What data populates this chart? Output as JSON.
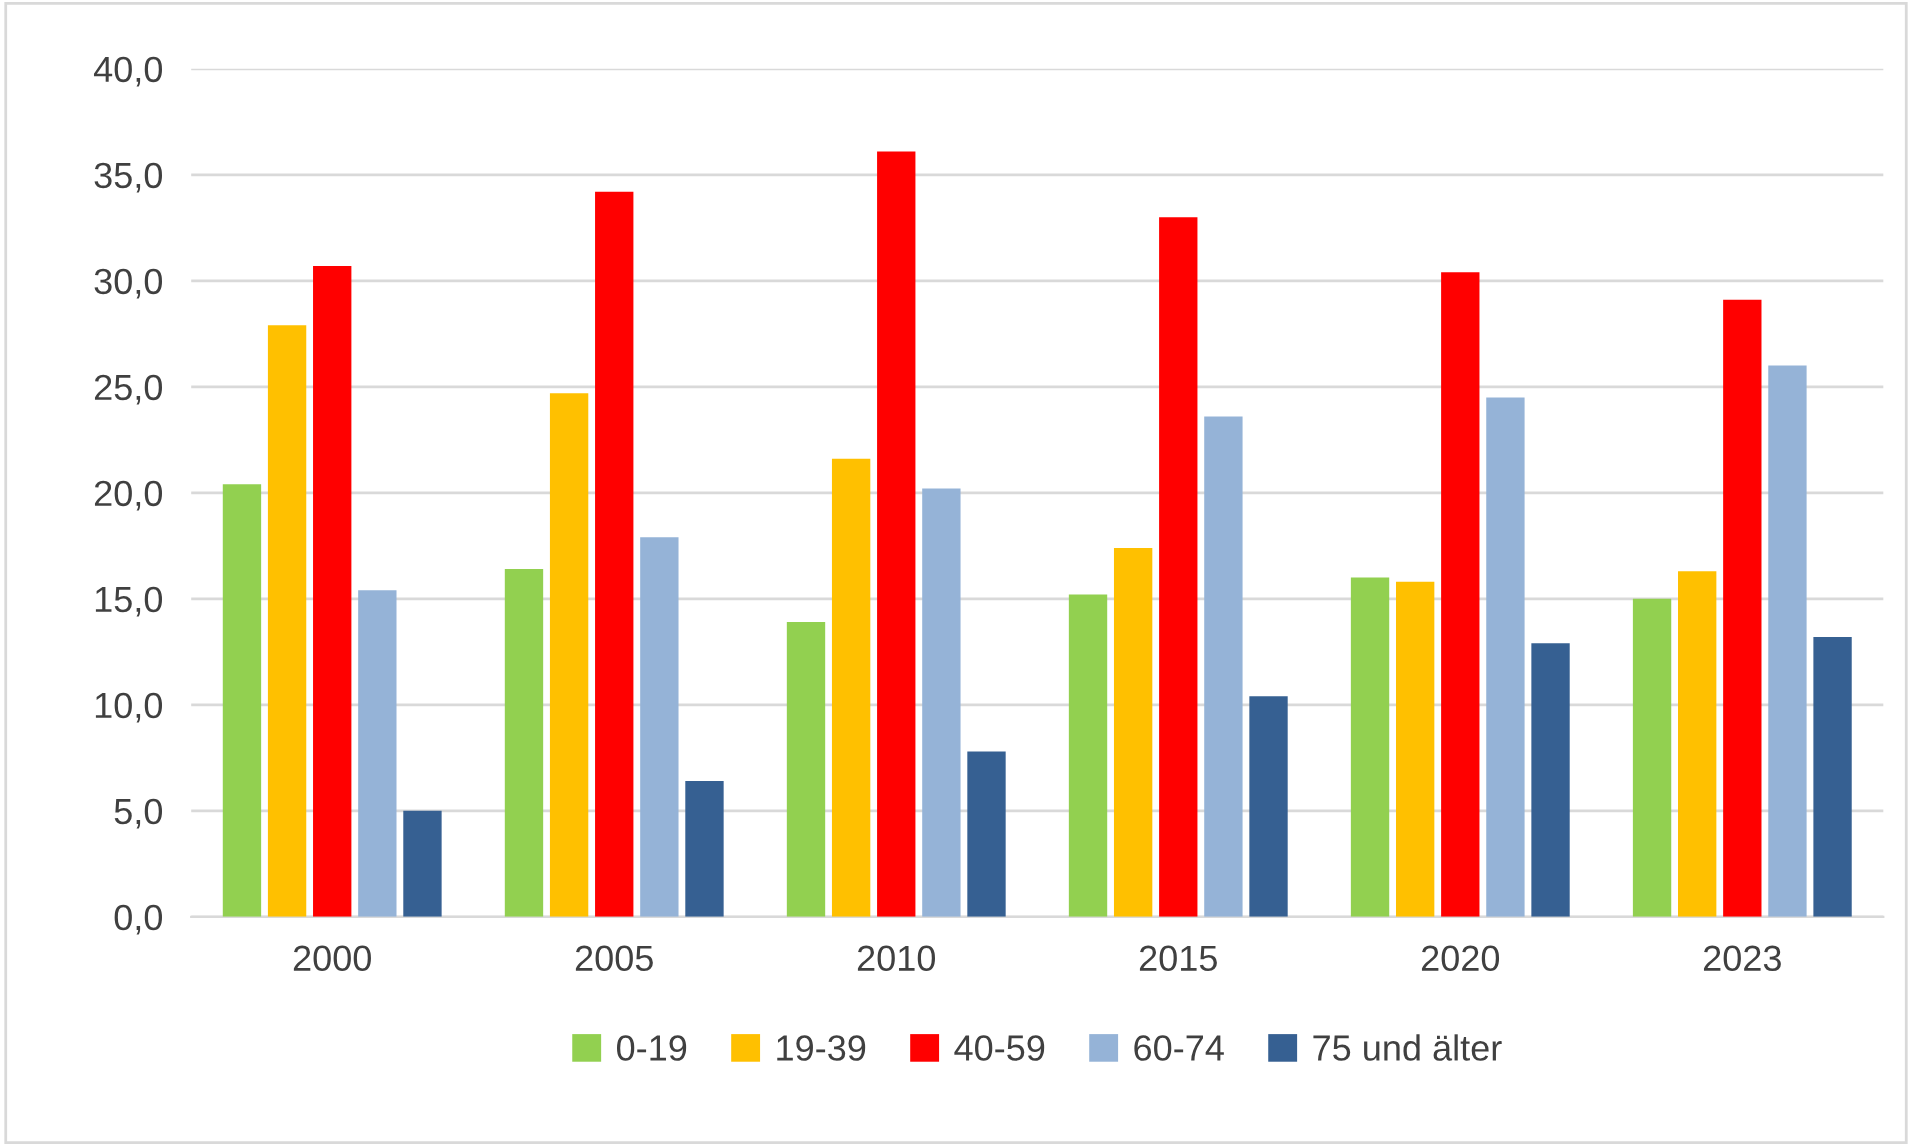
{
  "chart_data": {
    "type": "bar",
    "categories": [
      "2000",
      "2005",
      "2010",
      "2015",
      "2020",
      "2023"
    ],
    "series": [
      {
        "name": "0-19",
        "color": "#92d050",
        "values": [
          20.4,
          16.4,
          13.9,
          15.2,
          16.0,
          15.0
        ]
      },
      {
        "name": "19-39",
        "color": "#ffc000",
        "values": [
          27.9,
          24.7,
          21.6,
          17.4,
          15.8,
          16.3
        ]
      },
      {
        "name": "40-59",
        "color": "#ff0000",
        "values": [
          30.7,
          34.2,
          36.1,
          33.0,
          30.4,
          29.1
        ]
      },
      {
        "name": "60-74",
        "color": "#95b3d7",
        "values": [
          15.4,
          17.9,
          20.2,
          23.6,
          24.5,
          26.0
        ]
      },
      {
        "name": "75 und älter",
        "color": "#366092",
        "values": [
          5.0,
          6.4,
          7.8,
          10.4,
          12.9,
          13.2
        ]
      }
    ],
    "ylim": [
      0,
      40
    ],
    "yticks": [
      {
        "value": 0,
        "label": "0,0"
      },
      {
        "value": 5,
        "label": "5,0"
      },
      {
        "value": 10,
        "label": "10,0"
      },
      {
        "value": 15,
        "label": "15,0"
      },
      {
        "value": 20,
        "label": "20,0"
      },
      {
        "value": 25,
        "label": "25,0"
      },
      {
        "value": 30,
        "label": "30,0"
      },
      {
        "value": 35,
        "label": "35,0"
      },
      {
        "value": 40,
        "label": "40,0"
      }
    ],
    "grid": "y",
    "legend": "bottom"
  }
}
